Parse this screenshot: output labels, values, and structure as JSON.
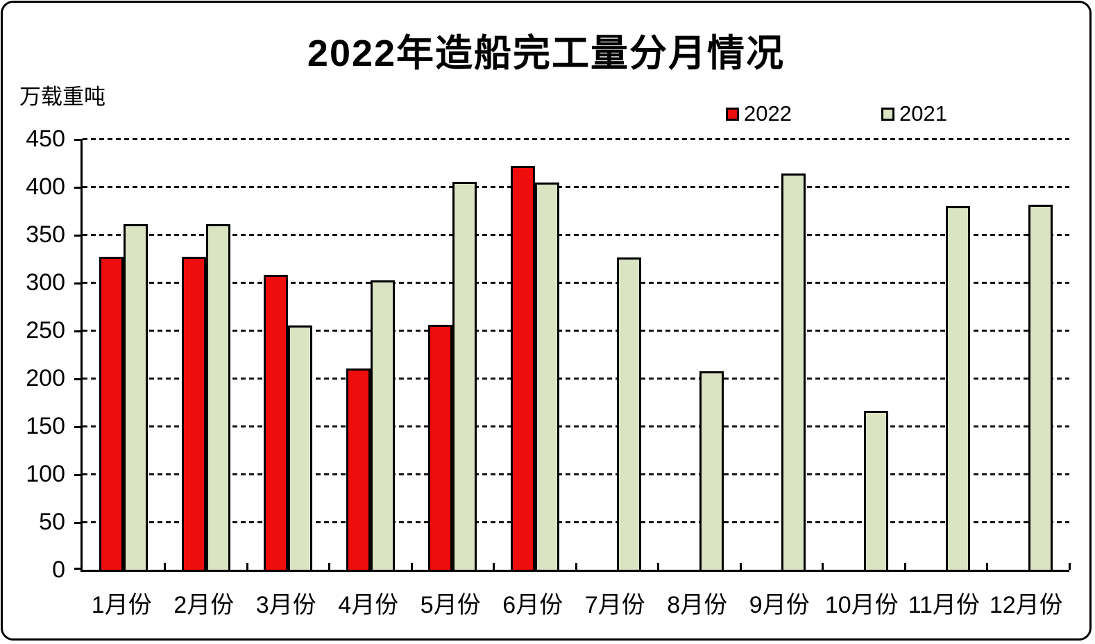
{
  "chart": {
    "title": "2022年造船完工量分月情况",
    "unit_label": "万载重吨",
    "legend": {
      "items": [
        {
          "label": "2022"
        },
        {
          "label": "2021"
        }
      ],
      "position": "top-right"
    }
  },
  "chart_data": {
    "type": "bar",
    "title": "2022年造船完工量分月情况",
    "ylabel": "万载重吨",
    "xlabel": "",
    "categories": [
      "1月份",
      "2月份",
      "3月份",
      "4月份",
      "5月份",
      "6月份",
      "7月份",
      "8月份",
      "9月份",
      "10月份",
      "11月份",
      "12月份"
    ],
    "series": [
      {
        "name": "2022",
        "color": "#ee0d0d",
        "values": [
          327,
          327,
          308,
          210,
          256,
          422,
          null,
          null,
          null,
          null,
          null,
          null
        ]
      },
      {
        "name": "2021",
        "color": "#dae4c2",
        "values": [
          361,
          361,
          255,
          302,
          405,
          404,
          326,
          207,
          414,
          166,
          380,
          381
        ]
      }
    ],
    "ylim": [
      0,
      450
    ],
    "y_ticks": [
      450,
      400,
      350,
      300,
      250,
      200,
      150,
      100,
      50,
      0
    ],
    "grid": "horizontal-dashed",
    "legend_position": "top-right",
    "colors": {
      "border": "#000000",
      "background": "#ffffff",
      "series_2022": "#ee0d0d",
      "series_2021": "#dae4c2"
    }
  }
}
